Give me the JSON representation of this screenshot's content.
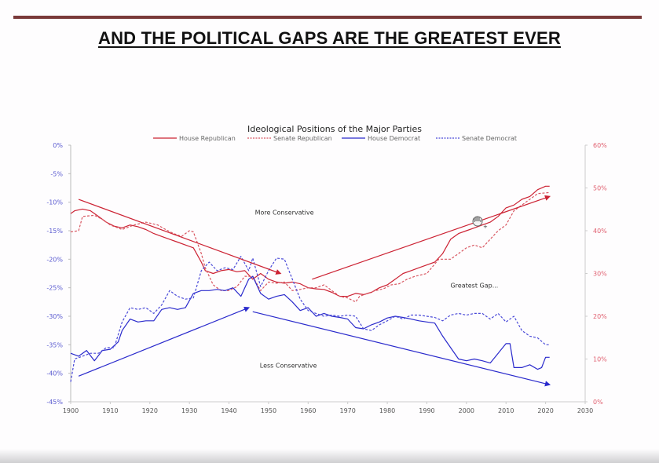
{
  "slide": {
    "title": "AND THE POLITICAL GAPS ARE THE GREATEST EVER"
  },
  "colors": {
    "rule": "#7a3a3a",
    "republican": "#cc2233",
    "republican_light": "#d85560",
    "democrat": "#2a2acc",
    "democrat_light": "#4a4ad8",
    "left_axis_text": "#5a5ad0",
    "right_axis_text": "#e06070"
  },
  "chart_data": {
    "type": "line",
    "title": "Ideological Positions of the Major Parties",
    "xlabel": "",
    "ylabel": "",
    "xlim": [
      1900,
      2030
    ],
    "x_ticks": [
      "1900",
      "1910",
      "1920",
      "1930",
      "1940",
      "1950",
      "1960",
      "1970",
      "1980",
      "1990",
      "2000",
      "2010",
      "2020",
      "2030"
    ],
    "ylim_left": [
      -45,
      0
    ],
    "y_ticks_left": [
      "0%",
      "-5%",
      "-10%",
      "-15%",
      "-20%",
      "-25%",
      "-30%",
      "-35%",
      "-40%",
      "-45%"
    ],
    "ylim_right": [
      0,
      60
    ],
    "y_ticks_right": [
      "60%",
      "50%",
      "40%",
      "30%",
      "20%",
      "10%",
      "0%"
    ],
    "grid": false,
    "legend_position": "top",
    "legend": [
      "House Republican",
      "Senate Republican",
      "House Democrat",
      "Senate Democrat"
    ],
    "units_note": "series values read against the left axis (%)",
    "series": [
      {
        "name": "House Republican",
        "style": "solid",
        "color": "#cc2233",
        "points": [
          [
            1900,
            -12.0
          ],
          [
            1901,
            -11.5
          ],
          [
            1903,
            -11.2
          ],
          [
            1905,
            -11.5
          ],
          [
            1907,
            -12.5
          ],
          [
            1909,
            -13.5
          ],
          [
            1911,
            -14.2
          ],
          [
            1913,
            -14.5
          ],
          [
            1915,
            -14.0
          ],
          [
            1917,
            -14.3
          ],
          [
            1919,
            -14.8
          ],
          [
            1921,
            -15.5
          ],
          [
            1923,
            -16.0
          ],
          [
            1925,
            -16.5
          ],
          [
            1927,
            -17.0
          ],
          [
            1929,
            -17.5
          ],
          [
            1931,
            -18.0
          ],
          [
            1933,
            -20.5
          ],
          [
            1934,
            -22.0
          ],
          [
            1936,
            -22.5
          ],
          [
            1938,
            -22.0
          ],
          [
            1940,
            -21.8
          ],
          [
            1942,
            -22.2
          ],
          [
            1944,
            -22.0
          ],
          [
            1946,
            -23.5
          ],
          [
            1948,
            -22.5
          ],
          [
            1950,
            -23.5
          ],
          [
            1952,
            -24.0
          ],
          [
            1954,
            -24.2
          ],
          [
            1956,
            -24.0
          ],
          [
            1958,
            -24.3
          ],
          [
            1960,
            -25.0
          ],
          [
            1962,
            -25.2
          ],
          [
            1964,
            -25.3
          ],
          [
            1966,
            -25.8
          ],
          [
            1968,
            -26.5
          ],
          [
            1970,
            -26.5
          ],
          [
            1972,
            -26.0
          ],
          [
            1974,
            -26.2
          ],
          [
            1976,
            -25.8
          ],
          [
            1978,
            -25.0
          ],
          [
            1980,
            -24.5
          ],
          [
            1982,
            -23.5
          ],
          [
            1984,
            -22.5
          ],
          [
            1986,
            -22.0
          ],
          [
            1988,
            -21.5
          ],
          [
            1990,
            -21.0
          ],
          [
            1992,
            -20.5
          ],
          [
            1994,
            -19.0
          ],
          [
            1996,
            -16.5
          ],
          [
            1998,
            -15.5
          ],
          [
            2000,
            -15.0
          ],
          [
            2002,
            -14.5
          ],
          [
            2004,
            -14.0
          ],
          [
            2006,
            -13.5
          ],
          [
            2008,
            -12.5
          ],
          [
            2010,
            -11.0
          ],
          [
            2012,
            -10.5
          ],
          [
            2014,
            -9.5
          ],
          [
            2016,
            -9.0
          ],
          [
            2018,
            -7.8
          ],
          [
            2020,
            -7.2
          ],
          [
            2021,
            -7.2
          ]
        ]
      },
      {
        "name": "Senate Republican",
        "style": "dashed",
        "color": "#d85560",
        "points": [
          [
            1900,
            -15.2
          ],
          [
            1902,
            -15.0
          ],
          [
            1903,
            -12.5
          ],
          [
            1906,
            -12.3
          ],
          [
            1908,
            -13.0
          ],
          [
            1910,
            -14.0
          ],
          [
            1913,
            -14.8
          ],
          [
            1916,
            -14.0
          ],
          [
            1919,
            -13.5
          ],
          [
            1922,
            -14.0
          ],
          [
            1924,
            -14.8
          ],
          [
            1926,
            -15.5
          ],
          [
            1928,
            -16.0
          ],
          [
            1930,
            -15.0
          ],
          [
            1931,
            -15.2
          ],
          [
            1933,
            -19.0
          ],
          [
            1934,
            -21.5
          ],
          [
            1936,
            -24.5
          ],
          [
            1938,
            -25.5
          ],
          [
            1940,
            -25.5
          ],
          [
            1942,
            -24.8
          ],
          [
            1944,
            -23.0
          ],
          [
            1946,
            -23.0
          ],
          [
            1948,
            -25.5
          ],
          [
            1950,
            -24.0
          ],
          [
            1952,
            -24.2
          ],
          [
            1954,
            -24.0
          ],
          [
            1956,
            -25.5
          ],
          [
            1958,
            -25.3
          ],
          [
            1960,
            -25.0
          ],
          [
            1962,
            -25.0
          ],
          [
            1964,
            -24.5
          ],
          [
            1966,
            -25.5
          ],
          [
            1968,
            -26.5
          ],
          [
            1970,
            -26.8
          ],
          [
            1972,
            -27.5
          ],
          [
            1973,
            -26.5
          ],
          [
            1975,
            -26.0
          ],
          [
            1977,
            -25.5
          ],
          [
            1979,
            -25.2
          ],
          [
            1981,
            -24.5
          ],
          [
            1983,
            -24.3
          ],
          [
            1985,
            -23.5
          ],
          [
            1987,
            -23.0
          ],
          [
            1990,
            -22.5
          ],
          [
            1993,
            -20.0
          ],
          [
            1996,
            -20.0
          ],
          [
            1998,
            -19.0
          ],
          [
            2000,
            -18.0
          ],
          [
            2002,
            -17.5
          ],
          [
            2004,
            -18.0
          ],
          [
            2006,
            -16.5
          ],
          [
            2008,
            -15.0
          ],
          [
            2010,
            -14.0
          ],
          [
            2012,
            -11.5
          ],
          [
            2014,
            -10.5
          ],
          [
            2016,
            -9.5
          ],
          [
            2018,
            -8.5
          ],
          [
            2021,
            -8.3
          ]
        ]
      },
      {
        "name": "House Democrat",
        "style": "solid",
        "color": "#2a2acc",
        "points": [
          [
            1900,
            -36.5
          ],
          [
            1902,
            -37.0
          ],
          [
            1904,
            -36.0
          ],
          [
            1906,
            -37.8
          ],
          [
            1908,
            -36.0
          ],
          [
            1910,
            -35.8
          ],
          [
            1912,
            -34.5
          ],
          [
            1913,
            -32.5
          ],
          [
            1915,
            -30.5
          ],
          [
            1917,
            -31.0
          ],
          [
            1919,
            -30.8
          ],
          [
            1921,
            -30.8
          ],
          [
            1923,
            -28.8
          ],
          [
            1925,
            -28.5
          ],
          [
            1927,
            -28.8
          ],
          [
            1929,
            -28.5
          ],
          [
            1931,
            -26.0
          ],
          [
            1933,
            -25.5
          ],
          [
            1935,
            -25.5
          ],
          [
            1937,
            -25.3
          ],
          [
            1939,
            -25.5
          ],
          [
            1941,
            -25.0
          ],
          [
            1943,
            -26.5
          ],
          [
            1945,
            -23.5
          ],
          [
            1946,
            -23.0
          ],
          [
            1948,
            -26.0
          ],
          [
            1950,
            -27.0
          ],
          [
            1952,
            -26.5
          ],
          [
            1954,
            -26.2
          ],
          [
            1956,
            -27.5
          ],
          [
            1958,
            -29.0
          ],
          [
            1960,
            -28.5
          ],
          [
            1962,
            -30.0
          ],
          [
            1964,
            -29.5
          ],
          [
            1966,
            -30.0
          ],
          [
            1968,
            -30.2
          ],
          [
            1970,
            -30.5
          ],
          [
            1972,
            -32.0
          ],
          [
            1974,
            -32.2
          ],
          [
            1976,
            -31.5
          ],
          [
            1978,
            -31.0
          ],
          [
            1980,
            -30.3
          ],
          [
            1982,
            -30.0
          ],
          [
            1984,
            -30.2
          ],
          [
            1986,
            -30.5
          ],
          [
            1988,
            -30.8
          ],
          [
            1990,
            -31.0
          ],
          [
            1992,
            -31.2
          ],
          [
            1994,
            -33.5
          ],
          [
            1996,
            -35.5
          ],
          [
            1998,
            -37.5
          ],
          [
            2000,
            -37.8
          ],
          [
            2002,
            -37.5
          ],
          [
            2004,
            -37.8
          ],
          [
            2006,
            -38.2
          ],
          [
            2008,
            -36.5
          ],
          [
            2010,
            -34.8
          ],
          [
            2011,
            -34.8
          ],
          [
            2012,
            -39.0
          ],
          [
            2014,
            -39.0
          ],
          [
            2016,
            -38.5
          ],
          [
            2018,
            -39.3
          ],
          [
            2019,
            -39.0
          ],
          [
            2020,
            -37.2
          ],
          [
            2021,
            -37.2
          ]
        ]
      },
      {
        "name": "Senate Democrat",
        "style": "dashed",
        "color": "#4a4ad8",
        "points": [
          [
            1900,
            -41.5
          ],
          [
            1901,
            -37.5
          ],
          [
            1903,
            -37.0
          ],
          [
            1905,
            -36.5
          ],
          [
            1907,
            -36.5
          ],
          [
            1909,
            -35.5
          ],
          [
            1911,
            -35.5
          ],
          [
            1913,
            -31.0
          ],
          [
            1915,
            -28.5
          ],
          [
            1917,
            -28.8
          ],
          [
            1919,
            -28.5
          ],
          [
            1921,
            -29.5
          ],
          [
            1923,
            -28.0
          ],
          [
            1925,
            -25.5
          ],
          [
            1927,
            -26.5
          ],
          [
            1929,
            -27.0
          ],
          [
            1931,
            -26.8
          ],
          [
            1933,
            -22.0
          ],
          [
            1935,
            -20.5
          ],
          [
            1937,
            -22.0
          ],
          [
            1939,
            -21.5
          ],
          [
            1941,
            -21.8
          ],
          [
            1943,
            -19.5
          ],
          [
            1945,
            -22.0
          ],
          [
            1946,
            -19.8
          ],
          [
            1948,
            -24.8
          ],
          [
            1950,
            -22.0
          ],
          [
            1952,
            -19.8
          ],
          [
            1954,
            -20.0
          ],
          [
            1956,
            -23.5
          ],
          [
            1958,
            -27.0
          ],
          [
            1960,
            -29.0
          ],
          [
            1962,
            -29.5
          ],
          [
            1964,
            -30.0
          ],
          [
            1966,
            -29.8
          ],
          [
            1968,
            -30.0
          ],
          [
            1970,
            -29.8
          ],
          [
            1972,
            -30.0
          ],
          [
            1974,
            -32.2
          ],
          [
            1976,
            -32.5
          ],
          [
            1978,
            -31.5
          ],
          [
            1980,
            -30.8
          ],
          [
            1982,
            -30.0
          ],
          [
            1984,
            -30.5
          ],
          [
            1986,
            -29.8
          ],
          [
            1988,
            -29.8
          ],
          [
            1990,
            -30.0
          ],
          [
            1992,
            -30.2
          ],
          [
            1994,
            -30.8
          ],
          [
            1996,
            -29.8
          ],
          [
            1998,
            -29.5
          ],
          [
            2000,
            -29.8
          ],
          [
            2002,
            -29.5
          ],
          [
            2004,
            -29.5
          ],
          [
            2006,
            -30.5
          ],
          [
            2008,
            -29.5
          ],
          [
            2010,
            -31.0
          ],
          [
            2012,
            -30.0
          ],
          [
            2014,
            -32.5
          ],
          [
            2016,
            -33.5
          ],
          [
            2018,
            -33.8
          ],
          [
            2020,
            -35.0
          ],
          [
            2021,
            -35.0
          ]
        ]
      }
    ],
    "trend_arrows": [
      {
        "name": "republican-left-trend",
        "color": "#cc2233",
        "from": [
          1902,
          -9.5
        ],
        "to": [
          1953,
          -22.5
        ]
      },
      {
        "name": "republican-right-trend",
        "color": "#cc2233",
        "from": [
          1961,
          -23.5
        ],
        "to": [
          2021,
          -9.0
        ]
      },
      {
        "name": "democrat-left-trend",
        "color": "#2a2acc",
        "from": [
          1902,
          -40.5
        ],
        "to": [
          1945,
          -28.5
        ]
      },
      {
        "name": "democrat-right-trend",
        "color": "#2a2acc",
        "from": [
          1946,
          -29.2
        ],
        "to": [
          2021,
          -42.0
        ]
      }
    ],
    "annotations": [
      {
        "text": "More Conservative",
        "at": [
          1954,
          -12.2
        ]
      },
      {
        "text": "Greatest Gap...",
        "at": [
          2002,
          -25.0
        ]
      },
      {
        "text": "Less Conservative",
        "at": [
          1955,
          -39.0
        ]
      }
    ]
  }
}
